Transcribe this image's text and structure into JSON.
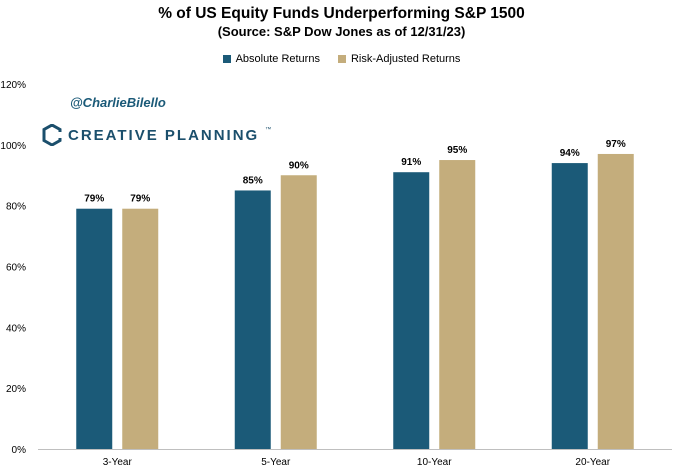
{
  "chart_data": {
    "type": "bar",
    "title": "% of US Equity Funds Underperforming S&P 1500",
    "subtitle": "(Source: S&P Dow Jones as of 12/31/23)",
    "categories": [
      "3-Year",
      "5-Year",
      "10-Year",
      "20-Year"
    ],
    "series": [
      {
        "name": "Absolute Returns",
        "color": "#1b5a78",
        "values": [
          79,
          85,
          91,
          94
        ],
        "labels": [
          "79%",
          "85%",
          "91%",
          "94%"
        ]
      },
      {
        "name": "Risk-Adjusted Returns",
        "color": "#c4ad7c",
        "values": [
          79,
          90,
          95,
          97
        ],
        "labels": [
          "79%",
          "90%",
          "95%",
          "97%"
        ]
      }
    ],
    "ylim": [
      0,
      120
    ],
    "yticks": [
      0,
      20,
      40,
      60,
      80,
      100,
      120
    ],
    "ytick_labels": [
      "0%",
      "20%",
      "40%",
      "60%",
      "80%",
      "100%",
      "120%"
    ],
    "grid": false,
    "legend_position": "top-center"
  },
  "watermark": {
    "handle": "@CharlieBilello",
    "logo_text": "CREATIVE PLANNING",
    "logo_mark": "™"
  },
  "icons": {
    "logo": "creative-planning-logo-icon"
  }
}
